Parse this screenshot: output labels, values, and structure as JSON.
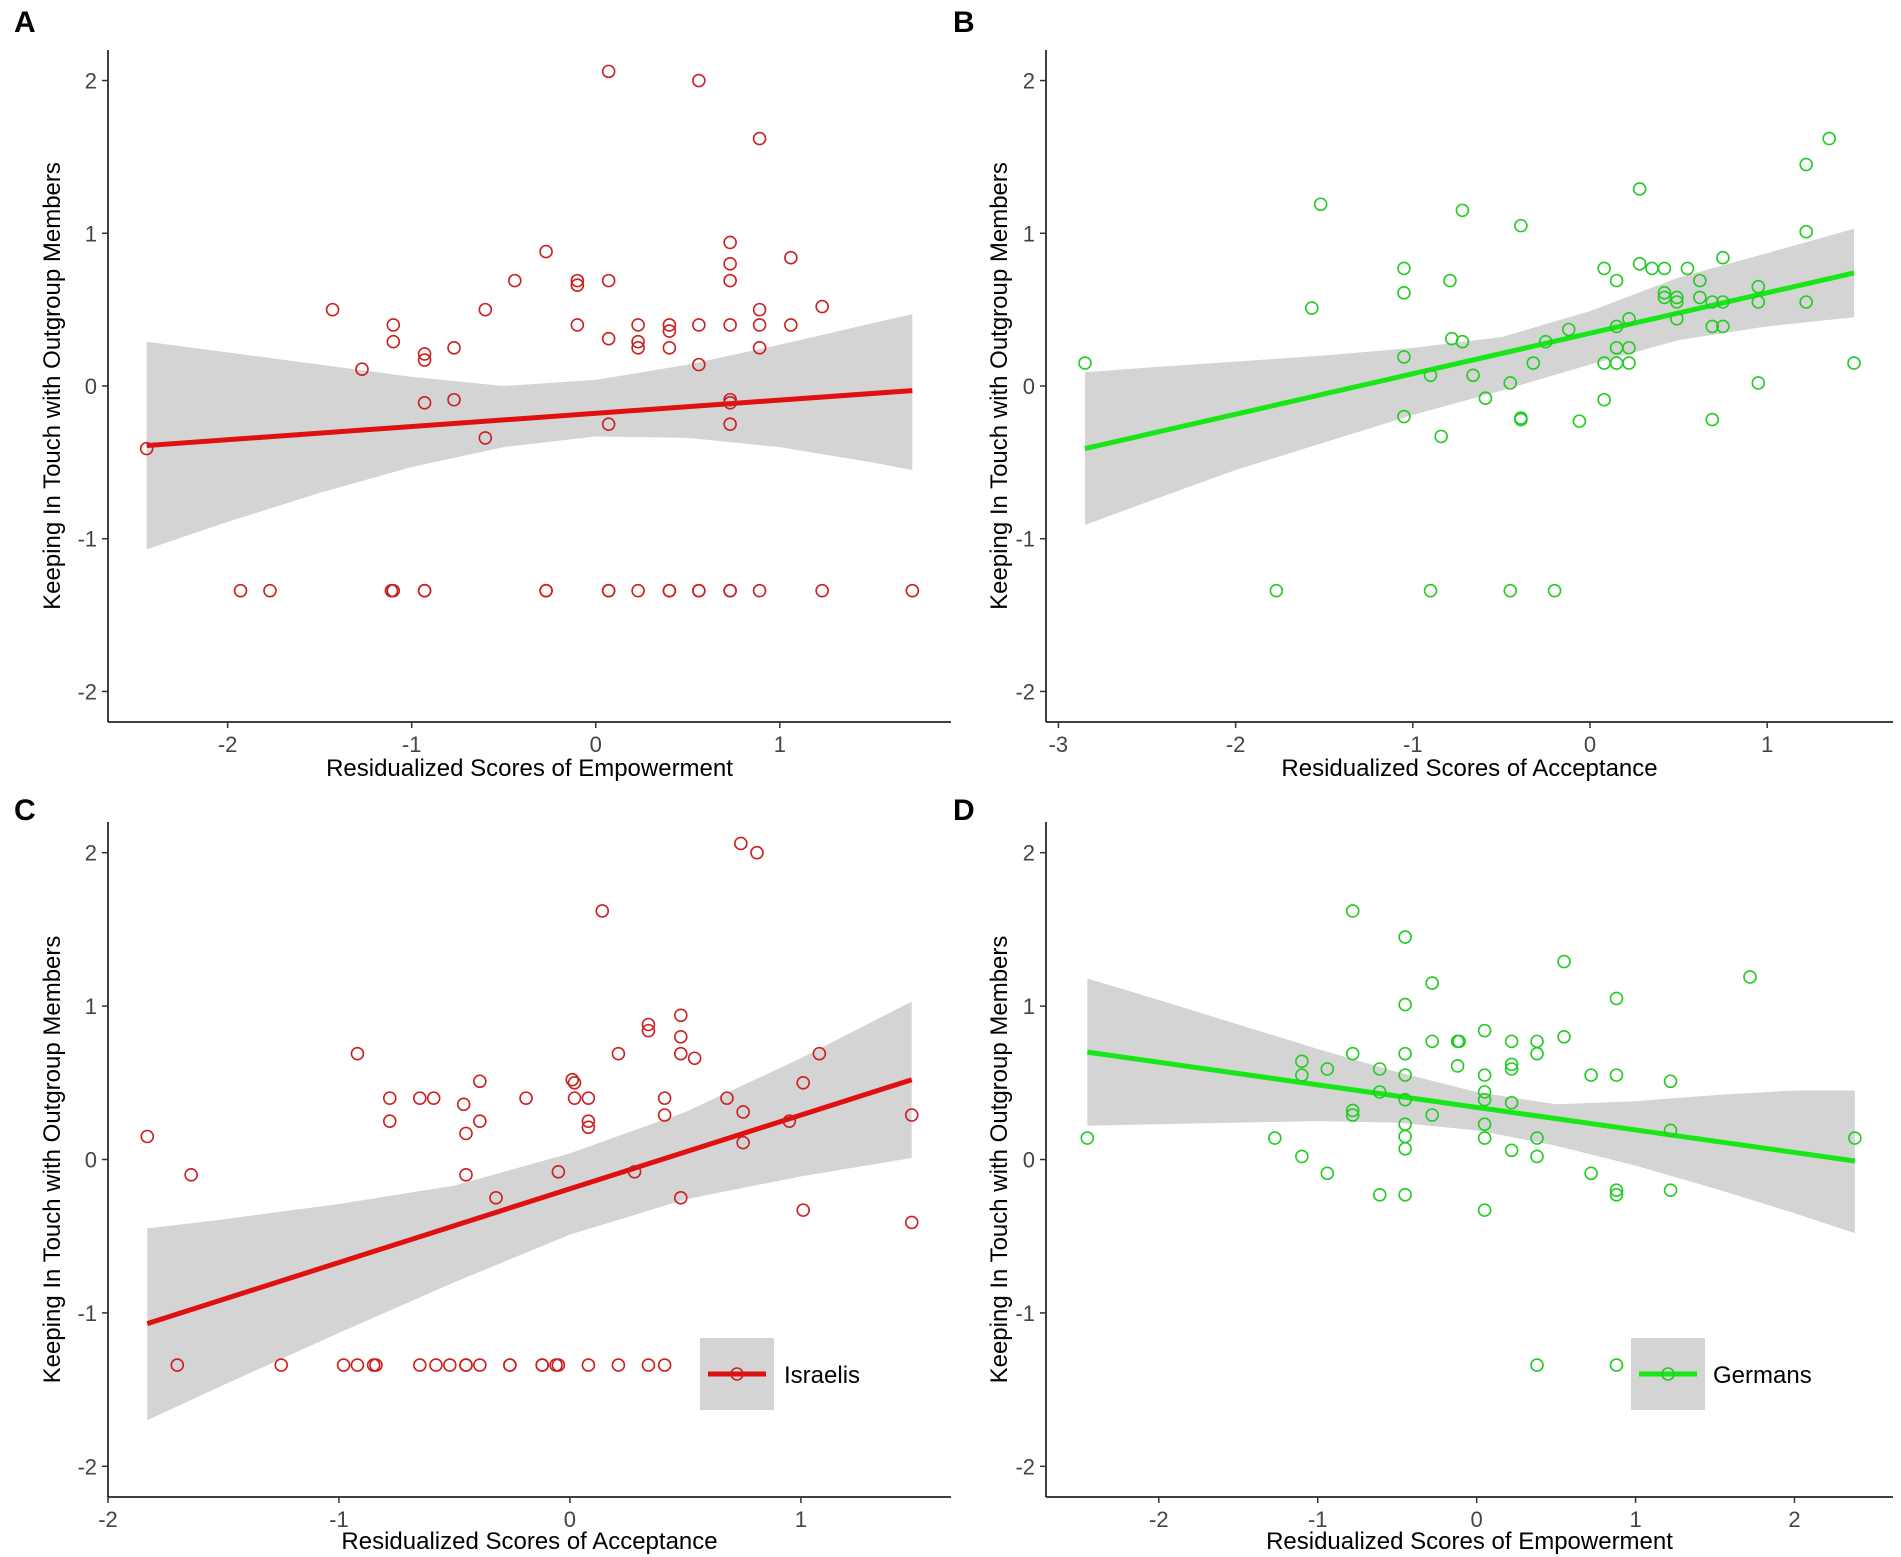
{
  "figure": {
    "panels": [
      "A",
      "B",
      "C",
      "D"
    ]
  },
  "colors": {
    "israelis": "#e01010",
    "israelis_points": "#cc2020",
    "germans": "#17e617",
    "germans_points": "#22cc22",
    "ribbon": "#d4d4d4",
    "axis": "#000000"
  },
  "chart_data": [
    {
      "panel": "A",
      "type": "scatter",
      "group": "Israelis",
      "xlabel": "Residualized Scores of Empowerment",
      "ylabel": "Keeping In Touch with Outgroup Members",
      "xlim": [
        -2.65,
        1.93
      ],
      "ylim": [
        -2.2,
        2.2
      ],
      "xticks": [
        -2,
        -1,
        0,
        1
      ],
      "yticks": [
        -2,
        -1,
        0,
        1,
        2
      ],
      "fit": {
        "x": [
          -2.44,
          1.72
        ],
        "y": [
          -0.39,
          -0.03
        ]
      },
      "ci": {
        "x": [
          -2.44,
          -2.0,
          -1.5,
          -1.0,
          -0.5,
          0.0,
          0.5,
          1.0,
          1.5,
          1.72
        ],
        "lower": [
          -1.07,
          -0.89,
          -0.7,
          -0.53,
          -0.4,
          -0.33,
          -0.34,
          -0.4,
          -0.5,
          -0.55
        ],
        "upper": [
          0.29,
          0.22,
          0.14,
          0.06,
          0.0,
          0.04,
          0.14,
          0.27,
          0.41,
          0.47
        ]
      },
      "points": [
        [
          -2.44,
          -0.41
        ],
        [
          -1.93,
          -1.34
        ],
        [
          -1.77,
          -1.34
        ],
        [
          -1.43,
          0.5
        ],
        [
          -1.27,
          0.11
        ],
        [
          -1.1,
          0.4
        ],
        [
          -1.1,
          0.29
        ],
        [
          -1.11,
          -1.34
        ],
        [
          -1.1,
          -1.34
        ],
        [
          -0.93,
          0.21
        ],
        [
          -0.93,
          0.17
        ],
        [
          -0.93,
          -0.11
        ],
        [
          -0.93,
          -1.34
        ],
        [
          -0.93,
          -1.34
        ],
        [
          -0.77,
          0.25
        ],
        [
          -0.77,
          -0.09
        ],
        [
          -0.6,
          0.5
        ],
        [
          -0.6,
          -0.34
        ],
        [
          -0.44,
          0.69
        ],
        [
          -0.27,
          0.88
        ],
        [
          -0.27,
          -1.34
        ],
        [
          -0.27,
          -1.34
        ],
        [
          -0.1,
          0.69
        ],
        [
          -0.1,
          0.66
        ],
        [
          -0.1,
          0.4
        ],
        [
          0.07,
          2.06
        ],
        [
          0.07,
          0.69
        ],
        [
          0.07,
          0.31
        ],
        [
          0.07,
          -0.25
        ],
        [
          0.07,
          -1.34
        ],
        [
          0.07,
          -1.34
        ],
        [
          0.23,
          0.4
        ],
        [
          0.23,
          0.29
        ],
        [
          0.23,
          0.25
        ],
        [
          0.23,
          -1.34
        ],
        [
          0.4,
          0.4
        ],
        [
          0.4,
          0.36
        ],
        [
          0.4,
          0.25
        ],
        [
          0.4,
          -1.34
        ],
        [
          0.4,
          -1.34
        ],
        [
          0.56,
          2.0
        ],
        [
          0.56,
          0.4
        ],
        [
          0.56,
          0.14
        ],
        [
          0.56,
          -1.34
        ],
        [
          0.56,
          -1.34
        ],
        [
          0.73,
          0.94
        ],
        [
          0.73,
          0.8
        ],
        [
          0.73,
          0.69
        ],
        [
          0.73,
          0.4
        ],
        [
          0.73,
          -0.09
        ],
        [
          0.73,
          -0.11
        ],
        [
          0.73,
          -0.25
        ],
        [
          0.73,
          -1.34
        ],
        [
          0.73,
          -1.34
        ],
        [
          0.89,
          1.62
        ],
        [
          0.89,
          0.5
        ],
        [
          0.89,
          0.4
        ],
        [
          0.89,
          0.25
        ],
        [
          0.89,
          -1.34
        ],
        [
          1.06,
          0.84
        ],
        [
          1.06,
          0.4
        ],
        [
          1.23,
          0.52
        ],
        [
          1.23,
          -1.34
        ],
        [
          1.72,
          -1.34
        ]
      ]
    },
    {
      "panel": "B",
      "type": "scatter",
      "group": "Germans",
      "xlabel": "Residualized Scores of Acceptance",
      "ylabel": "Keeping In Touch with Outgroup Members",
      "xlim": [
        -3.07,
        1.71
      ],
      "ylim": [
        -2.2,
        2.2
      ],
      "xticks": [
        -3,
        -2,
        -1,
        0,
        1
      ],
      "yticks": [
        -2,
        -1,
        0,
        1,
        2
      ],
      "fit": {
        "x": [
          -2.85,
          1.49
        ],
        "y": [
          -0.41,
          0.74
        ]
      },
      "ci": {
        "x": [
          -2.85,
          -2.5,
          -2.0,
          -1.5,
          -1.0,
          -0.5,
          0.0,
          0.5,
          1.0,
          1.49
        ],
        "lower": [
          -0.91,
          -0.76,
          -0.55,
          -0.37,
          -0.19,
          -0.03,
          0.14,
          0.3,
          0.39,
          0.45
        ],
        "upper": [
          0.09,
          0.12,
          0.16,
          0.2,
          0.25,
          0.32,
          0.49,
          0.71,
          0.87,
          1.03
        ]
      },
      "points": [
        [
          -2.85,
          0.15
        ],
        [
          -1.57,
          0.51
        ],
        [
          -1.52,
          1.19
        ],
        [
          -1.77,
          -1.34
        ],
        [
          -1.05,
          0.77
        ],
        [
          -1.05,
          0.61
        ],
        [
          -1.05,
          0.19
        ],
        [
          -1.05,
          -0.2
        ],
        [
          -0.9,
          0.07
        ],
        [
          -0.9,
          -1.34
        ],
        [
          -0.84,
          -0.33
        ],
        [
          -0.79,
          0.69
        ],
        [
          -0.78,
          0.31
        ],
        [
          -0.72,
          1.15
        ],
        [
          -0.72,
          0.29
        ],
        [
          -0.66,
          0.07
        ],
        [
          -0.59,
          -0.08
        ],
        [
          -0.45,
          0.02
        ],
        [
          -0.45,
          -1.34
        ],
        [
          -0.39,
          1.05
        ],
        [
          -0.39,
          -0.21
        ],
        [
          -0.39,
          -0.22
        ],
        [
          -0.32,
          0.15
        ],
        [
          -0.25,
          0.29
        ],
        [
          -0.2,
          -1.34
        ],
        [
          -0.12,
          0.37
        ],
        [
          -0.06,
          -0.23
        ],
        [
          0.08,
          0.77
        ],
        [
          0.08,
          0.15
        ],
        [
          0.08,
          -0.09
        ],
        [
          0.15,
          0.69
        ],
        [
          0.15,
          0.39
        ],
        [
          0.15,
          0.25
        ],
        [
          0.15,
          0.15
        ],
        [
          0.22,
          0.44
        ],
        [
          0.22,
          0.25
        ],
        [
          0.22,
          0.15
        ],
        [
          0.28,
          1.29
        ],
        [
          0.28,
          0.8
        ],
        [
          0.35,
          0.77
        ],
        [
          0.42,
          0.77
        ],
        [
          0.42,
          0.61
        ],
        [
          0.42,
          0.58
        ],
        [
          0.49,
          0.58
        ],
        [
          0.49,
          0.55
        ],
        [
          0.49,
          0.44
        ],
        [
          0.55,
          0.77
        ],
        [
          0.62,
          0.69
        ],
        [
          0.62,
          0.58
        ],
        [
          0.69,
          0.55
        ],
        [
          0.69,
          0.39
        ],
        [
          0.69,
          -0.22
        ],
        [
          0.75,
          0.84
        ],
        [
          0.75,
          0.55
        ],
        [
          0.75,
          0.39
        ],
        [
          0.95,
          0.65
        ],
        [
          0.95,
          0.55
        ],
        [
          0.95,
          0.02
        ],
        [
          1.22,
          1.45
        ],
        [
          1.22,
          1.01
        ],
        [
          1.22,
          0.55
        ],
        [
          1.35,
          1.62
        ],
        [
          1.49,
          0.15
        ]
      ]
    },
    {
      "panel": "C",
      "type": "scatter",
      "group": "Israelis",
      "legend": "Israelis",
      "xlabel": "Residualized Scores of Acceptance",
      "ylabel": "Keeping In Touch with Outgroup Members",
      "xlim": [
        -2.0,
        1.65
      ],
      "ylim": [
        -2.2,
        2.2
      ],
      "xticks": [
        -2,
        -1,
        0,
        1
      ],
      "yticks": [
        -2,
        -1,
        0,
        1,
        2
      ],
      "fit": {
        "x": [
          -1.83,
          1.48
        ],
        "y": [
          -1.07,
          0.52
        ]
      },
      "ci": {
        "x": [
          -1.83,
          -1.5,
          -1.0,
          -0.5,
          0.0,
          0.5,
          1.0,
          1.48
        ],
        "lower": [
          -1.7,
          -1.47,
          -1.13,
          -0.8,
          -0.49,
          -0.26,
          -0.11,
          0.01
        ],
        "upper": [
          -0.45,
          -0.39,
          -0.29,
          -0.17,
          0.04,
          0.31,
          0.66,
          1.03
        ]
      },
      "points": [
        [
          -1.83,
          0.15
        ],
        [
          -1.64,
          -0.1
        ],
        [
          -1.7,
          -1.34
        ],
        [
          -1.25,
          -1.34
        ],
        [
          -0.98,
          -1.34
        ],
        [
          -0.92,
          0.69
        ],
        [
          -0.92,
          -1.34
        ],
        [
          -0.85,
          -1.34
        ],
        [
          -0.84,
          -1.34
        ],
        [
          -0.78,
          0.4
        ],
        [
          -0.78,
          0.25
        ],
        [
          -0.65,
          0.4
        ],
        [
          -0.65,
          -1.34
        ],
        [
          -0.59,
          0.4
        ],
        [
          -0.58,
          -1.34
        ],
        [
          -0.52,
          -1.34
        ],
        [
          -0.46,
          0.36
        ],
        [
          -0.45,
          0.17
        ],
        [
          -0.45,
          -0.1
        ],
        [
          -0.45,
          -1.34
        ],
        [
          -0.45,
          -1.34
        ],
        [
          -0.39,
          0.51
        ],
        [
          -0.39,
          0.25
        ],
        [
          -0.39,
          -1.34
        ],
        [
          -0.32,
          -0.25
        ],
        [
          -0.26,
          -1.34
        ],
        [
          -0.26,
          -1.34
        ],
        [
          -0.19,
          0.4
        ],
        [
          -0.12,
          -1.34
        ],
        [
          -0.12,
          -1.34
        ],
        [
          -0.05,
          -0.08
        ],
        [
          -0.06,
          -1.34
        ],
        [
          -0.05,
          -1.34
        ],
        [
          0.01,
          0.52
        ],
        [
          0.02,
          0.5
        ],
        [
          0.02,
          0.4
        ],
        [
          0.08,
          0.4
        ],
        [
          0.08,
          0.25
        ],
        [
          0.08,
          0.21
        ],
        [
          0.08,
          -1.34
        ],
        [
          0.14,
          1.62
        ],
        [
          0.21,
          0.69
        ],
        [
          0.21,
          -1.34
        ],
        [
          0.28,
          -0.08
        ],
        [
          0.34,
          0.88
        ],
        [
          0.34,
          0.84
        ],
        [
          0.34,
          -1.34
        ],
        [
          0.41,
          0.4
        ],
        [
          0.41,
          0.29
        ],
        [
          0.41,
          -1.34
        ],
        [
          0.48,
          0.94
        ],
        [
          0.48,
          0.8
        ],
        [
          0.48,
          0.69
        ],
        [
          0.48,
          -0.25
        ],
        [
          0.54,
          0.66
        ],
        [
          0.68,
          0.4
        ],
        [
          0.74,
          2.06
        ],
        [
          0.75,
          0.31
        ],
        [
          0.75,
          0.11
        ],
        [
          0.81,
          2.0
        ],
        [
          0.95,
          0.25
        ],
        [
          1.01,
          0.5
        ],
        [
          1.01,
          -0.33
        ],
        [
          1.08,
          0.69
        ],
        [
          1.48,
          0.29
        ],
        [
          1.48,
          -0.41
        ]
      ]
    },
    {
      "panel": "D",
      "type": "scatter",
      "group": "Germans",
      "legend": "Germans",
      "xlabel": "Residualized Scores of Empowerment",
      "ylabel": "Keeping In Touch with Outgroup Members",
      "xlim": [
        -2.71,
        2.62
      ],
      "ylim": [
        -2.2,
        2.2
      ],
      "xticks": [
        -2,
        -1,
        0,
        1,
        2
      ],
      "yticks": [
        -2,
        -1,
        0,
        1,
        2
      ],
      "fit": {
        "x": [
          -2.45,
          2.38
        ],
        "y": [
          0.7,
          -0.01
        ]
      },
      "ci": {
        "x": [
          -2.45,
          -2.0,
          -1.5,
          -1.0,
          -0.5,
          0.0,
          0.5,
          1.0,
          1.5,
          2.0,
          2.38
        ],
        "lower": [
          0.22,
          0.23,
          0.24,
          0.25,
          0.24,
          0.19,
          0.09,
          -0.04,
          -0.19,
          -0.35,
          -0.48
        ],
        "upper": [
          1.18,
          1.04,
          0.88,
          0.72,
          0.57,
          0.44,
          0.36,
          0.38,
          0.42,
          0.45,
          0.45
        ]
      },
      "points": [
        [
          -2.45,
          0.14
        ],
        [
          -1.27,
          0.14
        ],
        [
          -1.1,
          0.64
        ],
        [
          -1.1,
          0.55
        ],
        [
          -1.1,
          0.02
        ],
        [
          -0.94,
          0.59
        ],
        [
          -0.94,
          -0.09
        ],
        [
          -0.78,
          1.62
        ],
        [
          -0.78,
          0.69
        ],
        [
          -0.78,
          0.32
        ],
        [
          -0.78,
          0.29
        ],
        [
          -0.61,
          0.59
        ],
        [
          -0.61,
          0.44
        ],
        [
          -0.61,
          -0.23
        ],
        [
          -0.45,
          1.45
        ],
        [
          -0.45,
          1.01
        ],
        [
          -0.45,
          0.69
        ],
        [
          -0.45,
          0.55
        ],
        [
          -0.45,
          0.39
        ],
        [
          -0.45,
          0.23
        ],
        [
          -0.45,
          0.15
        ],
        [
          -0.45,
          0.07
        ],
        [
          -0.45,
          -0.23
        ],
        [
          -0.28,
          1.15
        ],
        [
          -0.28,
          0.77
        ],
        [
          -0.28,
          0.29
        ],
        [
          -0.12,
          0.77
        ],
        [
          -0.12,
          0.61
        ],
        [
          -0.11,
          0.77
        ],
        [
          0.05,
          0.84
        ],
        [
          0.05,
          0.55
        ],
        [
          0.05,
          0.44
        ],
        [
          0.05,
          0.39
        ],
        [
          0.05,
          0.23
        ],
        [
          0.05,
          0.14
        ],
        [
          0.05,
          -0.33
        ],
        [
          0.22,
          0.77
        ],
        [
          0.22,
          0.62
        ],
        [
          0.22,
          0.59
        ],
        [
          0.22,
          0.37
        ],
        [
          0.22,
          0.06
        ],
        [
          0.38,
          0.77
        ],
        [
          0.38,
          0.69
        ],
        [
          0.38,
          0.14
        ],
        [
          0.38,
          0.02
        ],
        [
          0.38,
          -1.34
        ],
        [
          0.55,
          1.29
        ],
        [
          0.55,
          0.8
        ],
        [
          0.72,
          0.55
        ],
        [
          0.72,
          -0.09
        ],
        [
          0.88,
          1.05
        ],
        [
          0.88,
          0.55
        ],
        [
          0.88,
          -0.2
        ],
        [
          0.88,
          -0.23
        ],
        [
          0.88,
          -1.34
        ],
        [
          1.22,
          0.51
        ],
        [
          1.22,
          0.19
        ],
        [
          1.22,
          -0.2
        ],
        [
          1.72,
          1.19
        ],
        [
          2.38,
          0.14
        ]
      ]
    }
  ]
}
